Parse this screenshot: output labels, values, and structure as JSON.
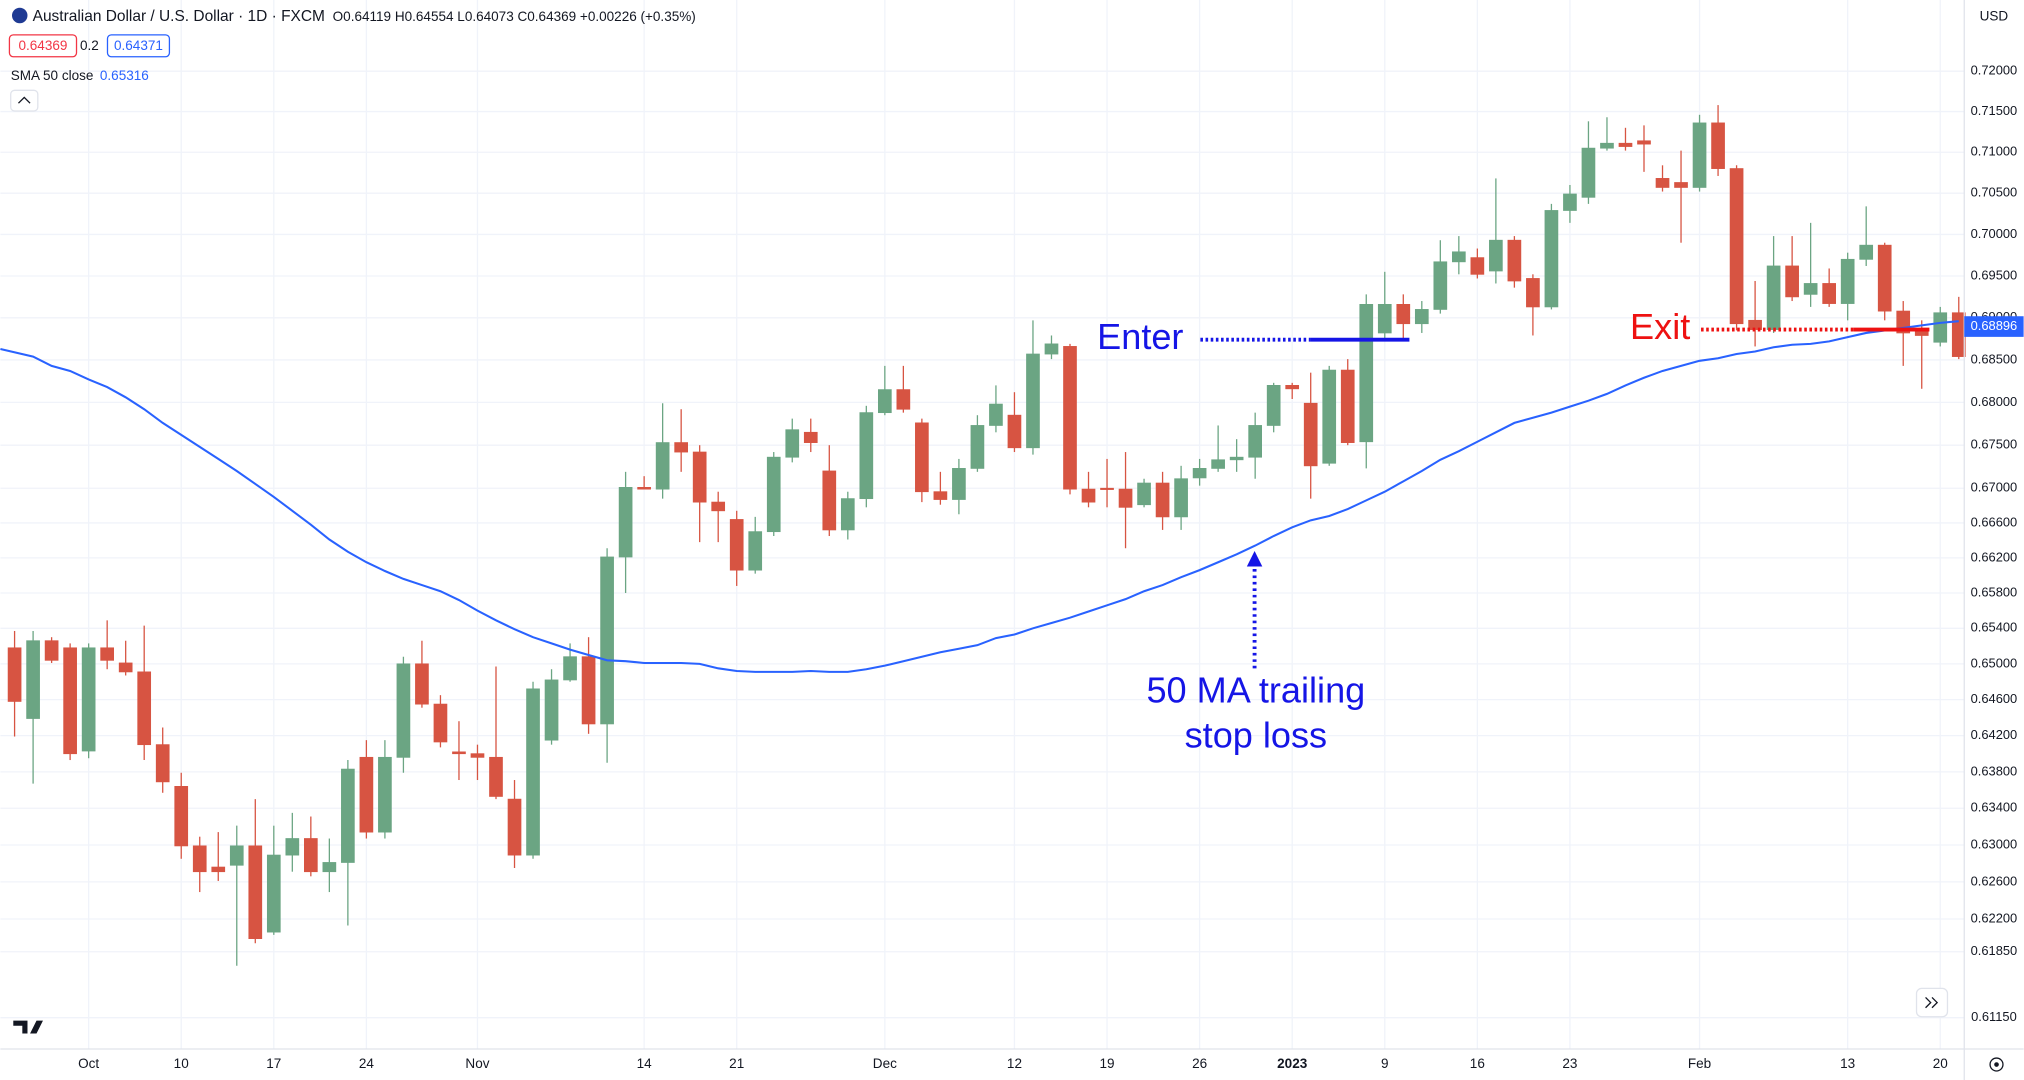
{
  "chart_data": {
    "type": "candlestick",
    "title": "Australian Dollar / U.S. Dollar · 1D · FXCM",
    "subtitle": "O0.64119 H0.64554 L0.64073 C0.64369 +0.00226 (+0.35%)",
    "bid": 0.64369,
    "spread": 0.2,
    "ask": 0.64371,
    "currency": "USD",
    "last_price": 0.68896,
    "log_scale": true,
    "grid": true,
    "up_color": "#6ba583",
    "down_color": "#d75442",
    "categories": [
      null,
      null,
      null,
      null,
      "Oct",
      null,
      null,
      null,
      null,
      "10",
      null,
      null,
      null,
      null,
      "17",
      null,
      null,
      null,
      null,
      "24",
      null,
      null,
      null,
      null,
      null,
      "Nov",
      null,
      null,
      null,
      null,
      null,
      null,
      null,
      null,
      "14",
      null,
      null,
      null,
      null,
      "21",
      null,
      null,
      null,
      null,
      null,
      null,
      null,
      "Dec",
      null,
      null,
      null,
      null,
      null,
      null,
      "12",
      null,
      null,
      null,
      null,
      "19",
      null,
      null,
      null,
      null,
      "26",
      null,
      null,
      null,
      null,
      "2023",
      null,
      null,
      null,
      null,
      "9",
      null,
      null,
      null,
      null,
      "16",
      null,
      null,
      null,
      null,
      "23",
      null,
      null,
      null,
      null,
      null,
      null,
      "Feb",
      null,
      null,
      null,
      null,
      null,
      null,
      null,
      "13",
      null,
      null,
      null,
      null,
      "20",
      null
    ],
    "open": [
      0.6518,
      0.6439,
      0.6526,
      0.6518,
      0.6403,
      0.6518,
      0.6501,
      0.6491,
      0.641,
      0.6364,
      0.6299,
      0.6276,
      0.6278,
      0.6299,
      0.6206,
      0.6289,
      0.6307,
      0.6271,
      0.6281,
      0.6396,
      0.6314,
      0.6396,
      0.65,
      0.6455,
      0.6402,
      0.64,
      0.6396,
      0.635,
      0.6289,
      0.6415,
      0.6482,
      0.6508,
      0.6433,
      0.6621,
      0.6701,
      0.6699,
      0.6753,
      0.6742,
      0.6684,
      0.6664,
      0.6606,
      0.665,
      0.6736,
      0.6765,
      0.672,
      0.6652,
      0.6688,
      0.6788,
      0.6815,
      0.6776,
      0.6696,
      0.6687,
      0.6723,
      0.6773,
      0.6785,
      0.6747,
      0.6857,
      0.6866,
      0.6699,
      0.67,
      0.6699,
      0.6681,
      0.6706,
      0.6667,
      0.6712,
      0.6723,
      0.6733,
      0.6736,
      0.6773,
      0.682,
      0.6799,
      0.6729,
      0.6838,
      0.6754,
      0.6882,
      0.6916,
      0.6893,
      0.691,
      0.6967,
      0.6972,
      0.6956,
      0.6993,
      0.6947,
      0.6913,
      0.7029,
      0.7045,
      0.7105,
      0.7111,
      0.7114,
      0.7068,
      0.7063,
      0.7057,
      0.7136,
      0.708,
      0.6897,
      0.6886,
      0.6962,
      0.6928,
      0.6941,
      0.6917,
      0.697,
      0.6987,
      0.6908,
      0.6885,
      0.6871,
      0.6906
    ],
    "high": [
      0.6537,
      0.6537,
      0.653,
      0.6523,
      0.6523,
      0.6549,
      0.6526,
      0.6543,
      0.6429,
      0.6379,
      0.6309,
      0.6314,
      0.6321,
      0.635,
      0.6321,
      0.6335,
      0.6331,
      0.6307,
      0.6393,
      0.6415,
      0.6415,
      0.6508,
      0.6526,
      0.6465,
      0.6436,
      0.641,
      0.6497,
      0.6371,
      0.648,
      0.6494,
      0.6523,
      0.653,
      0.6631,
      0.6719,
      0.6714,
      0.6799,
      0.6792,
      0.675,
      0.6696,
      0.6674,
      0.6667,
      0.6742,
      0.6781,
      0.6781,
      0.675,
      0.6696,
      0.6796,
      0.6843,
      0.6843,
      0.6781,
      0.6719,
      0.6734,
      0.6785,
      0.682,
      0.6812,
      0.6897,
      0.6879,
      0.6869,
      0.6719,
      0.6734,
      0.6742,
      0.6711,
      0.6719,
      0.6726,
      0.6734,
      0.6773,
      0.6757,
      0.6788,
      0.6823,
      0.6823,
      0.6835,
      0.6843,
      0.6851,
      0.6928,
      0.6955,
      0.6928,
      0.692,
      0.6993,
      0.6998,
      0.6983,
      0.7068,
      0.6998,
      0.6952,
      0.7037,
      0.706,
      0.7138,
      0.7143,
      0.713,
      0.7133,
      0.7084,
      0.7102,
      0.7146,
      0.7158,
      0.7084,
      0.6944,
      0.6998,
      0.6998,
      0.7014,
      0.6959,
      0.6978,
      0.7034,
      0.699,
      0.692,
      0.6897,
      0.6913,
      0.6925
    ],
    "low": [
      0.6419,
      0.6367,
      0.6501,
      0.6393,
      0.6395,
      0.6494,
      0.6487,
      0.6393,
      0.6357,
      0.6285,
      0.6249,
      0.6261,
      0.617,
      0.6194,
      0.6203,
      0.6271,
      0.6266,
      0.6249,
      0.6213,
      0.6307,
      0.6307,
      0.6379,
      0.6451,
      0.6407,
      0.6371,
      0.6371,
      0.635,
      0.6275,
      0.6285,
      0.641,
      0.648,
      0.6422,
      0.639,
      0.658,
      0.6699,
      0.6688,
      0.6719,
      0.6638,
      0.6638,
      0.6588,
      0.6602,
      0.6645,
      0.673,
      0.6742,
      0.6645,
      0.6641,
      0.6678,
      0.6785,
      0.6788,
      0.6684,
      0.6681,
      0.667,
      0.6719,
      0.6765,
      0.6742,
      0.6739,
      0.6851,
      0.6693,
      0.6678,
      0.6678,
      0.6631,
      0.6678,
      0.6652,
      0.6652,
      0.6703,
      0.6719,
      0.6719,
      0.6711,
      0.6765,
      0.6804,
      0.6688,
      0.6726,
      0.675,
      0.6723,
      0.6874,
      0.6874,
      0.6882,
      0.6905,
      0.6952,
      0.6947,
      0.6941,
      0.6936,
      0.6879,
      0.691,
      0.7014,
      0.7037,
      0.7102,
      0.7102,
      0.7076,
      0.7052,
      0.699,
      0.7052,
      0.7071,
      0.6885,
      0.6866,
      0.6882,
      0.692,
      0.6913,
      0.6913,
      0.6897,
      0.6962,
      0.6897,
      0.6843,
      0.6816,
      0.6866,
      0.6851
    ],
    "close": [
      0.6458,
      0.6526,
      0.6504,
      0.64,
      0.6518,
      0.6504,
      0.6491,
      0.641,
      0.6369,
      0.6299,
      0.6271,
      0.6271,
      0.6299,
      0.6199,
      0.6289,
      0.6307,
      0.6271,
      0.6281,
      0.6383,
      0.6314,
      0.6396,
      0.65,
      0.6455,
      0.6413,
      0.64,
      0.6396,
      0.6353,
      0.6289,
      0.6472,
      0.6482,
      0.6508,
      0.6433,
      0.6621,
      0.6701,
      0.6699,
      0.6753,
      0.6742,
      0.6684,
      0.6674,
      0.6606,
      0.665,
      0.6736,
      0.6768,
      0.6753,
      0.6652,
      0.6688,
      0.6788,
      0.6815,
      0.6792,
      0.6696,
      0.6687,
      0.6723,
      0.6773,
      0.6798,
      0.6747,
      0.6857,
      0.6869,
      0.6699,
      0.6684,
      0.6699,
      0.6678,
      0.6706,
      0.6667,
      0.6711,
      0.6723,
      0.6733,
      0.6736,
      0.6773,
      0.682,
      0.6816,
      0.6726,
      0.6838,
      0.6753,
      0.6916,
      0.6916,
      0.6893,
      0.691,
      0.6967,
      0.6979,
      0.6952,
      0.6993,
      0.6944,
      0.6913,
      0.7029,
      0.7049,
      0.7105,
      0.7111,
      0.7107,
      0.711,
      0.7057,
      0.7057,
      0.7136,
      0.708,
      0.6893,
      0.6886,
      0.6962,
      0.6925,
      0.6941,
      0.6917,
      0.697,
      0.6987,
      0.6908,
      0.6882,
      0.6879,
      0.6906,
      0.6854
    ],
    "sma": {
      "name": "SMA 50 close",
      "legend_value": 0.65316,
      "color": "#2962ff",
      "values": [
        0.6863,
        0.6854,
        0.6843,
        0.6837,
        0.6827,
        0.6818,
        0.6806,
        0.6792,
        0.6776,
        0.6762,
        0.6748,
        0.6734,
        0.672,
        0.6705,
        0.669,
        0.6674,
        0.6658,
        0.6641,
        0.6627,
        0.6615,
        0.6605,
        0.6596,
        0.6589,
        0.6582,
        0.6572,
        0.656,
        0.6549,
        0.6539,
        0.653,
        0.6523,
        0.6516,
        0.651,
        0.6504,
        0.6503,
        0.6501,
        0.6501,
        0.6501,
        0.65,
        0.6495,
        0.6492,
        0.6491,
        0.6491,
        0.6491,
        0.6492,
        0.6491,
        0.6491,
        0.6494,
        0.6498,
        0.6503,
        0.6508,
        0.6513,
        0.6517,
        0.6521,
        0.6529,
        0.6533,
        0.654,
        0.6546,
        0.6552,
        0.6559,
        0.6566,
        0.6573,
        0.6582,
        0.6589,
        0.6598,
        0.6606,
        0.6615,
        0.6624,
        0.6634,
        0.6645,
        0.6655,
        0.6663,
        0.6668,
        0.6676,
        0.6686,
        0.6696,
        0.6708,
        0.672,
        0.6733,
        0.6743,
        0.6754,
        0.6765,
        0.6776,
        0.6782,
        0.6788,
        0.6795,
        0.6802,
        0.681,
        0.682,
        0.6829,
        0.6837,
        0.6843,
        0.6849,
        0.6852,
        0.6857,
        0.686,
        0.6865,
        0.6868,
        0.6869,
        0.6872,
        0.6877,
        0.6882,
        0.6885,
        0.6888,
        0.6891,
        0.6894,
        0.6896
      ]
    },
    "ylim": [
      0.6082,
      0.7289
    ],
    "yticks": [
      {
        "value": 0.72,
        "label": "0.72000"
      },
      {
        "value": 0.715,
        "label": "0.71500"
      },
      {
        "value": 0.71,
        "label": "0.71000"
      },
      {
        "value": 0.705,
        "label": "0.70500"
      },
      {
        "value": 0.7,
        "label": "0.70000"
      },
      {
        "value": 0.695,
        "label": "0.69500"
      },
      {
        "value": 0.69,
        "label": "0.69000"
      },
      {
        "value": 0.685,
        "label": "0.68500"
      },
      {
        "value": 0.68,
        "label": "0.68000"
      },
      {
        "value": 0.675,
        "label": "0.67500"
      },
      {
        "value": 0.67,
        "label": "0.67000"
      },
      {
        "value": 0.666,
        "label": "0.66600"
      },
      {
        "value": 0.662,
        "label": "0.66200"
      },
      {
        "value": 0.658,
        "label": "0.65800"
      },
      {
        "value": 0.654,
        "label": "0.65400"
      },
      {
        "value": 0.65,
        "label": "0.65000"
      },
      {
        "value": 0.646,
        "label": "0.64600"
      },
      {
        "value": 0.642,
        "label": "0.64200"
      },
      {
        "value": 0.638,
        "label": "0.63800"
      },
      {
        "value": 0.634,
        "label": "0.63400"
      },
      {
        "value": 0.63,
        "label": "0.63000"
      },
      {
        "value": 0.626,
        "label": "0.62600"
      },
      {
        "value": 0.622,
        "label": "0.62200"
      },
      {
        "value": 0.6185,
        "label": "0.61850"
      },
      {
        "value": 0.6115,
        "label": "0.61150"
      }
    ],
    "annotations": [
      {
        "text": "Enter",
        "color": "#1515e6",
        "level": 0.6874
      },
      {
        "text": "Exit",
        "color": "#ee1111",
        "level": 0.6886
      },
      {
        "lines": [
          "50 MA trailing",
          "stop loss"
        ],
        "color": "#1515e6"
      }
    ]
  }
}
